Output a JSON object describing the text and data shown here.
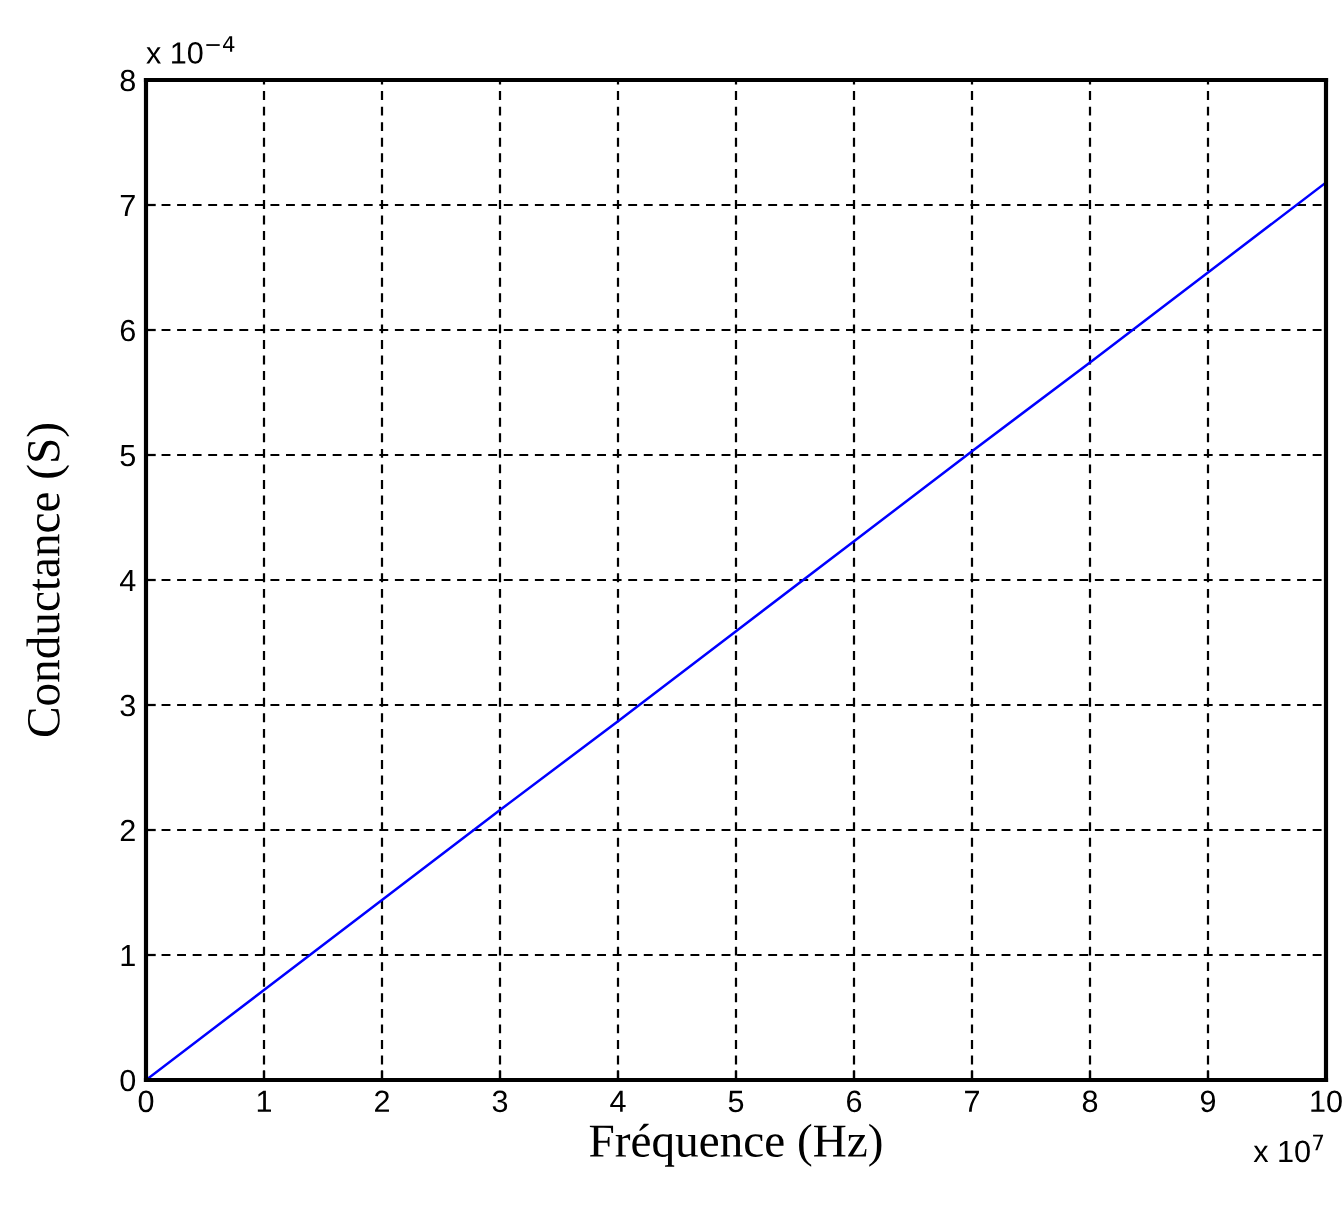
{
  "chart_data": {
    "type": "line",
    "xlabel": "Fréquence (Hz)",
    "ylabel": "Conductance (S)",
    "annotations": [
      "x 10$^{−4}$",
      "x 10$^{7}$"
    ],
    "x": [
      0,
      1,
      2,
      3,
      4,
      5,
      6,
      7,
      8,
      9,
      10
    ],
    "series": [
      {
        "color": "#0000ff",
        "values": [
          0,
          0.72,
          1.44,
          2.16,
          2.87,
          3.59,
          4.31,
          5.03,
          5.74,
          6.46,
          7.18
        ]
      }
    ],
    "xlim": [
      0,
      10
    ],
    "ylim": [
      0,
      8
    ],
    "xticks": [
      0,
      1,
      2,
      3,
      4,
      5,
      6,
      7,
      8,
      9,
      10
    ],
    "yticks": [
      0,
      1,
      2,
      3,
      4,
      5,
      6,
      7,
      8
    ],
    "grid": true,
    "line_style": "solid",
    "marker": "none"
  }
}
